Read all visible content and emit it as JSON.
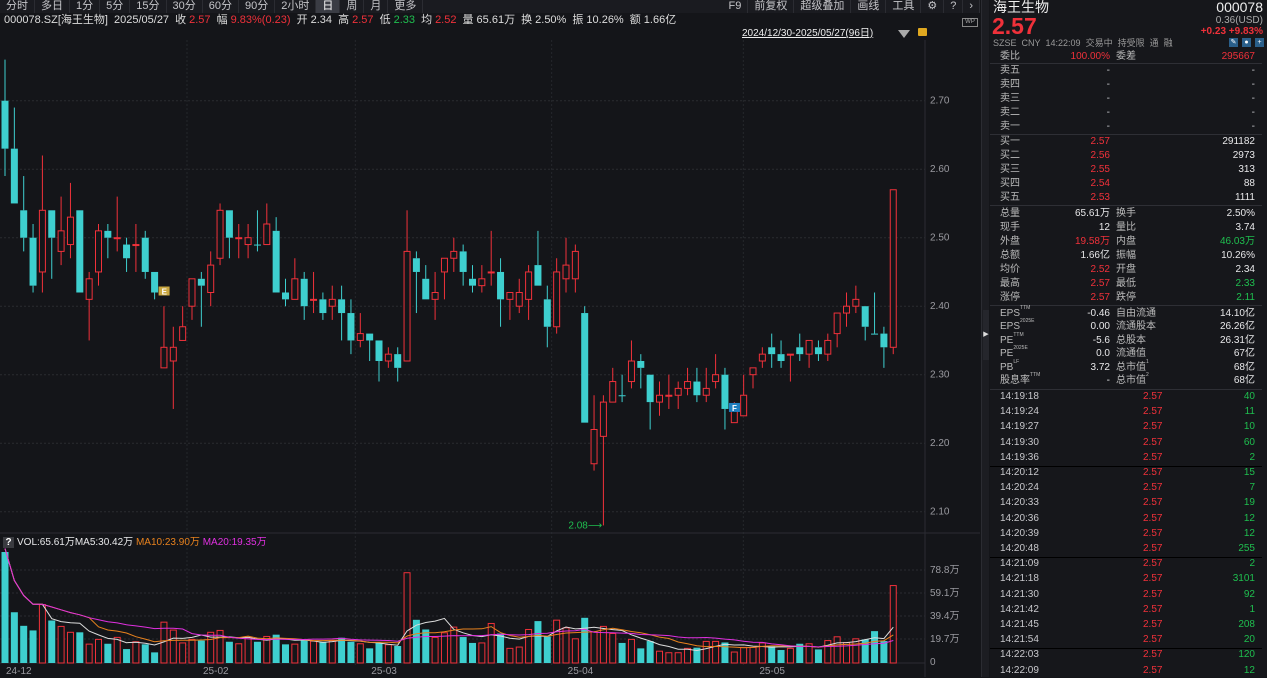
{
  "toolbar": {
    "left": [
      "分时",
      "多日",
      "1分",
      "5分",
      "15分",
      "30分",
      "60分",
      "90分",
      "2小时",
      "日",
      "周",
      "月",
      "更多"
    ],
    "active": "日",
    "right": [
      "F9",
      "前复权",
      "超级叠加",
      "画线",
      "工具"
    ],
    "icons": [
      "gear-icon",
      "help-icon",
      "chevron-right-icon"
    ]
  },
  "info": {
    "code": "000078.SZ[海王生物]",
    "date": "2025/05/27",
    "close_label": "收",
    "close": "2.57",
    "amp_label": "幅",
    "amp": "9.83%(0.23)",
    "open_label": "开",
    "open": "2.34",
    "high_label": "高",
    "high": "2.57",
    "low_label": "低",
    "low": "2.33",
    "avg_label": "均",
    "avg": "2.52",
    "vol_label": "量",
    "vol": "65.61万",
    "turn_label": "换",
    "turn": "2.50%",
    "swing_label": "振",
    "swing": "10.26%",
    "amount_label": "额",
    "amount": "1.66亿"
  },
  "range": "2024/12/30-2025/05/27(96日)",
  "wp_label": "WP",
  "vol_legend": {
    "help": "?",
    "vol": "VOL:65.61万",
    "ma5": "MA5:30.42万",
    "ma10": "MA10:23.90万",
    "ma20": "MA20:19.35万"
  },
  "colors": {
    "up": "#f0313a",
    "down": "#3ecfcf",
    "ma5": "#dcdcdc",
    "ma10": "#e8821e",
    "ma20": "#e030e0",
    "background": "#141519"
  },
  "chart_data": {
    "type": "candlestick",
    "price_ticks": [
      "2.70",
      "2.60",
      "2.50",
      "2.40",
      "2.30",
      "2.20",
      "2.10"
    ],
    "price_range": [
      2.04,
      2.77
    ],
    "volume_ticks": [
      "78.8万",
      "59.1万",
      "39.4万",
      "19.7万",
      "0"
    ],
    "volume_unit": "万",
    "x_ticks": [
      {
        "index": 0,
        "label": "24-12"
      },
      {
        "index": 20,
        "label": "25-02"
      },
      {
        "index": 38,
        "label": "25-03"
      },
      {
        "index": 59,
        "label": "25-04"
      },
      {
        "index": 79.5,
        "label": "25-05"
      }
    ],
    "ohlc": [
      [
        2.7,
        2.76,
        2.59,
        2.63
      ],
      [
        2.63,
        2.69,
        2.55,
        2.55
      ],
      [
        2.54,
        2.59,
        2.48,
        2.5
      ],
      [
        2.5,
        2.52,
        2.42,
        2.43
      ],
      [
        2.45,
        2.62,
        2.42,
        2.54
      ],
      [
        2.54,
        2.54,
        2.44,
        2.5
      ],
      [
        2.48,
        2.56,
        2.46,
        2.51
      ],
      [
        2.49,
        2.58,
        2.47,
        2.53
      ],
      [
        2.54,
        2.54,
        2.42,
        2.42
      ],
      [
        2.41,
        2.45,
        2.35,
        2.44
      ],
      [
        2.45,
        2.52,
        2.43,
        2.51
      ],
      [
        2.51,
        2.52,
        2.47,
        2.5
      ],
      [
        2.5,
        2.56,
        2.48,
        2.5
      ],
      [
        2.49,
        2.5,
        2.45,
        2.47
      ],
      [
        2.49,
        2.52,
        2.45,
        2.49
      ],
      [
        2.5,
        2.51,
        2.44,
        2.45
      ],
      [
        2.45,
        2.45,
        2.41,
        2.42
      ],
      [
        2.31,
        2.4,
        2.31,
        2.34
      ],
      [
        2.32,
        2.37,
        2.25,
        2.34
      ],
      [
        2.35,
        2.4,
        2.35,
        2.37
      ],
      [
        2.4,
        2.44,
        2.38,
        2.44
      ],
      [
        2.44,
        2.45,
        2.37,
        2.43
      ],
      [
        2.42,
        2.48,
        2.4,
        2.46
      ],
      [
        2.47,
        2.55,
        2.46,
        2.54
      ],
      [
        2.54,
        2.54,
        2.47,
        2.5
      ],
      [
        2.5,
        2.52,
        2.47,
        2.5
      ],
      [
        2.49,
        2.52,
        2.47,
        2.5
      ],
      [
        2.49,
        2.54,
        2.48,
        2.49
      ],
      [
        2.49,
        2.55,
        2.49,
        2.52
      ],
      [
        2.51,
        2.53,
        2.42,
        2.42
      ],
      [
        2.42,
        2.44,
        2.4,
        2.41
      ],
      [
        2.41,
        2.47,
        2.41,
        2.44
      ],
      [
        2.44,
        2.45,
        2.38,
        2.4
      ],
      [
        2.41,
        2.45,
        2.39,
        2.41
      ],
      [
        2.41,
        2.42,
        2.38,
        2.39
      ],
      [
        2.4,
        2.43,
        2.38,
        2.41
      ],
      [
        2.41,
        2.43,
        2.35,
        2.39
      ],
      [
        2.39,
        2.41,
        2.33,
        2.35
      ],
      [
        2.35,
        2.39,
        2.34,
        2.36
      ],
      [
        2.36,
        2.36,
        2.32,
        2.35
      ],
      [
        2.35,
        2.35,
        2.29,
        2.32
      ],
      [
        2.32,
        2.34,
        2.31,
        2.33
      ],
      [
        2.33,
        2.34,
        2.29,
        2.31
      ],
      [
        2.32,
        2.54,
        2.32,
        2.48
      ],
      [
        2.47,
        2.48,
        2.39,
        2.45
      ],
      [
        2.44,
        2.46,
        2.41,
        2.41
      ],
      [
        2.41,
        2.45,
        2.38,
        2.42
      ],
      [
        2.45,
        2.47,
        2.41,
        2.47
      ],
      [
        2.47,
        2.5,
        2.45,
        2.48
      ],
      [
        2.48,
        2.49,
        2.43,
        2.45
      ],
      [
        2.44,
        2.46,
        2.42,
        2.43
      ],
      [
        2.43,
        2.46,
        2.42,
        2.44
      ],
      [
        2.45,
        2.51,
        2.43,
        2.45
      ],
      [
        2.45,
        2.47,
        2.37,
        2.41
      ],
      [
        2.41,
        2.42,
        2.38,
        2.42
      ],
      [
        2.4,
        2.44,
        2.39,
        2.42
      ],
      [
        2.41,
        2.46,
        2.38,
        2.45
      ],
      [
        2.46,
        2.51,
        2.43,
        2.43
      ],
      [
        2.41,
        2.43,
        2.34,
        2.37
      ],
      [
        2.37,
        2.47,
        2.36,
        2.45
      ],
      [
        2.44,
        2.5,
        2.42,
        2.46
      ],
      [
        2.44,
        2.49,
        2.42,
        2.48
      ],
      [
        2.39,
        2.4,
        2.23,
        2.23
      ],
      [
        2.17,
        2.27,
        2.16,
        2.22
      ],
      [
        2.21,
        2.27,
        2.08,
        2.26
      ],
      [
        2.26,
        2.31,
        2.26,
        2.29
      ],
      [
        2.27,
        2.3,
        2.26,
        2.27
      ],
      [
        2.29,
        2.35,
        2.28,
        2.32
      ],
      [
        2.32,
        2.33,
        2.28,
        2.31
      ],
      [
        2.3,
        2.3,
        2.22,
        2.26
      ],
      [
        2.26,
        2.29,
        2.24,
        2.27
      ],
      [
        2.27,
        2.3,
        2.25,
        2.27
      ],
      [
        2.27,
        2.29,
        2.25,
        2.28
      ],
      [
        2.28,
        2.31,
        2.27,
        2.29
      ],
      [
        2.29,
        2.31,
        2.26,
        2.27
      ],
      [
        2.27,
        2.31,
        2.26,
        2.28
      ],
      [
        2.29,
        2.33,
        2.28,
        2.3
      ],
      [
        2.3,
        2.31,
        2.22,
        2.25
      ],
      [
        2.23,
        2.26,
        2.23,
        2.25
      ],
      [
        2.24,
        2.3,
        2.24,
        2.27
      ],
      [
        2.3,
        2.31,
        2.28,
        2.31
      ],
      [
        2.32,
        2.34,
        2.31,
        2.33
      ],
      [
        2.34,
        2.36,
        2.31,
        2.33
      ],
      [
        2.33,
        2.35,
        2.31,
        2.32
      ],
      [
        2.33,
        2.33,
        2.29,
        2.33
      ],
      [
        2.34,
        2.36,
        2.32,
        2.33
      ],
      [
        2.33,
        2.35,
        2.31,
        2.35
      ],
      [
        2.34,
        2.35,
        2.32,
        2.33
      ],
      [
        2.33,
        2.36,
        2.32,
        2.35
      ],
      [
        2.36,
        2.39,
        2.34,
        2.39
      ],
      [
        2.39,
        2.42,
        2.37,
        2.4
      ],
      [
        2.4,
        2.43,
        2.39,
        2.41
      ],
      [
        2.4,
        2.4,
        2.35,
        2.37
      ],
      [
        2.36,
        2.42,
        2.36,
        2.36
      ],
      [
        2.36,
        2.37,
        2.31,
        2.34
      ],
      [
        2.34,
        2.57,
        2.33,
        2.57
      ]
    ],
    "volume": [
      97,
      43,
      31.5,
      27.6,
      49.5,
      36,
      31,
      26,
      26,
      16,
      20,
      16.3,
      21.7,
      11.8,
      18,
      15.8,
      9,
      34.6,
      27.9,
      17,
      20,
      19,
      26,
      27.6,
      18,
      16.3,
      21.4,
      18,
      22.5,
      24,
      15.8,
      16,
      19,
      18.6,
      18,
      19,
      21.4,
      18,
      16.3,
      12.4,
      17,
      15.5,
      14.4,
      76.5,
      36.6,
      28.4,
      21.7,
      25.6,
      30.4,
      22,
      17,
      17,
      33.5,
      25,
      12.4,
      13.5,
      28.4,
      35.5,
      22.5,
      36.3,
      29.8,
      20.5,
      38.3,
      26.5,
      31,
      25,
      17,
      20,
      12.4,
      18.6,
      10,
      8.7,
      8.7,
      12.4,
      13,
      18.3,
      18.3,
      17.4,
      9.3,
      13.2,
      13.2,
      17,
      14.4,
      11,
      12.4,
      16.3,
      16.3,
      11.5,
      19,
      22.2,
      17.4,
      20.5,
      20,
      27,
      18.6,
      65.61
    ],
    "ma_periods": [
      5,
      10,
      20
    ],
    "annotations": [
      {
        "index": 16,
        "label": "E",
        "color": "#c9a640"
      },
      {
        "index": 77,
        "label": "F",
        "color": "#1f7fc0"
      }
    ],
    "low_marker": {
      "index": 64,
      "label": "2.08⟶"
    }
  },
  "panel": {
    "name": "海王生物",
    "code": "000078",
    "usd": "0.36(USD)",
    "price": "2.57",
    "change": "+0.23",
    "change_pct": "+9.83%",
    "status": [
      "SZSE",
      "CNY",
      "14:22:09",
      "交易中",
      "持受限",
      "通",
      "融"
    ],
    "weibi": {
      "label": "委比",
      "value": "100.00%",
      "label2": "委差",
      "value2": "295667"
    },
    "asks": [
      {
        "label": "卖五",
        "price": "-",
        "vol": "-"
      },
      {
        "label": "卖四",
        "price": "-",
        "vol": "-"
      },
      {
        "label": "卖三",
        "price": "-",
        "vol": "-"
      },
      {
        "label": "卖二",
        "price": "-",
        "vol": "-"
      },
      {
        "label": "卖一",
        "price": "-",
        "vol": "-"
      }
    ],
    "bids": [
      {
        "label": "买一",
        "price": "2.57",
        "vol": "291182"
      },
      {
        "label": "买二",
        "price": "2.56",
        "vol": "2973"
      },
      {
        "label": "买三",
        "price": "2.55",
        "vol": "313"
      },
      {
        "label": "买四",
        "price": "2.54",
        "vol": "88"
      },
      {
        "label": "买五",
        "price": "2.53",
        "vol": "1111"
      }
    ],
    "stats": [
      {
        "l1": "总量",
        "v1": "65.61万",
        "c1": "white",
        "l2": "换手",
        "v2": "2.50%",
        "c2": "white"
      },
      {
        "l1": "现手",
        "v1": "12",
        "c1": "white",
        "l2": "量比",
        "v2": "3.74",
        "c2": "white"
      },
      {
        "l1": "外盘",
        "v1": "19.58万",
        "c1": "red",
        "l2": "内盘",
        "v2": "46.03万",
        "c2": "green"
      },
      {
        "l1": "总额",
        "v1": "1.66亿",
        "c1": "white",
        "l2": "振幅",
        "v2": "10.26%",
        "c2": "white"
      },
      {
        "l1": "均价",
        "v1": "2.52",
        "c1": "red",
        "l2": "开盘",
        "v2": "2.34",
        "c2": "white"
      },
      {
        "l1": "最高",
        "v1": "2.57",
        "c1": "red",
        "l2": "最低",
        "v2": "2.33",
        "c2": "green"
      },
      {
        "l1": "涨停",
        "v1": "2.57",
        "c1": "red",
        "l2": "跌停",
        "v2": "2.11",
        "c2": "green"
      }
    ],
    "fund": [
      {
        "l1": "EPS",
        "s1": "TTM",
        "v1": "-0.46",
        "l2": "自由流通",
        "s2": "",
        "v2": "14.10亿"
      },
      {
        "l1": "EPS",
        "s1": "2025E",
        "v1": "0.00",
        "l2": "流通股本",
        "s2": "",
        "v2": "26.26亿"
      },
      {
        "l1": "PE",
        "s1": "TTM",
        "v1": "-5.6",
        "l2": "总股本",
        "s2": "",
        "v2": "26.31亿"
      },
      {
        "l1": "PE",
        "s1": "2025E",
        "v1": "0.0",
        "l2": "流通值",
        "s2": "",
        "v2": "67亿"
      },
      {
        "l1": "PB",
        "s1": "LF",
        "v1": "3.72",
        "l2": "总市值",
        "s2": "1",
        "v2": "68亿"
      },
      {
        "l1": "股息率",
        "s1": "TTM",
        "v1": "-",
        "l2": "总市值",
        "s2": "2",
        "v2": "68亿"
      }
    ],
    "ticks": [
      {
        "t": "14:19:18",
        "p": "2.57",
        "v": "40"
      },
      {
        "t": "14:19:24",
        "p": "2.57",
        "v": "11"
      },
      {
        "t": "14:19:27",
        "p": "2.57",
        "v": "10"
      },
      {
        "t": "14:19:30",
        "p": "2.57",
        "v": "60"
      },
      {
        "t": "14:19:36",
        "p": "2.57",
        "v": "2"
      },
      {
        "t": "14:20:12",
        "p": "2.57",
        "v": "15"
      },
      {
        "t": "14:20:24",
        "p": "2.57",
        "v": "7"
      },
      {
        "t": "14:20:33",
        "p": "2.57",
        "v": "19"
      },
      {
        "t": "14:20:36",
        "p": "2.57",
        "v": "12"
      },
      {
        "t": "14:20:39",
        "p": "2.57",
        "v": "12"
      },
      {
        "t": "14:20:48",
        "p": "2.57",
        "v": "255"
      },
      {
        "t": "14:21:09",
        "p": "2.57",
        "v": "2"
      },
      {
        "t": "14:21:18",
        "p": "2.57",
        "v": "3101"
      },
      {
        "t": "14:21:30",
        "p": "2.57",
        "v": "92"
      },
      {
        "t": "14:21:42",
        "p": "2.57",
        "v": "1"
      },
      {
        "t": "14:21:45",
        "p": "2.57",
        "v": "208"
      },
      {
        "t": "14:21:54",
        "p": "2.57",
        "v": "20"
      },
      {
        "t": "14:22:03",
        "p": "2.57",
        "v": "120"
      },
      {
        "t": "14:22:09",
        "p": "2.57",
        "v": "12"
      }
    ]
  }
}
